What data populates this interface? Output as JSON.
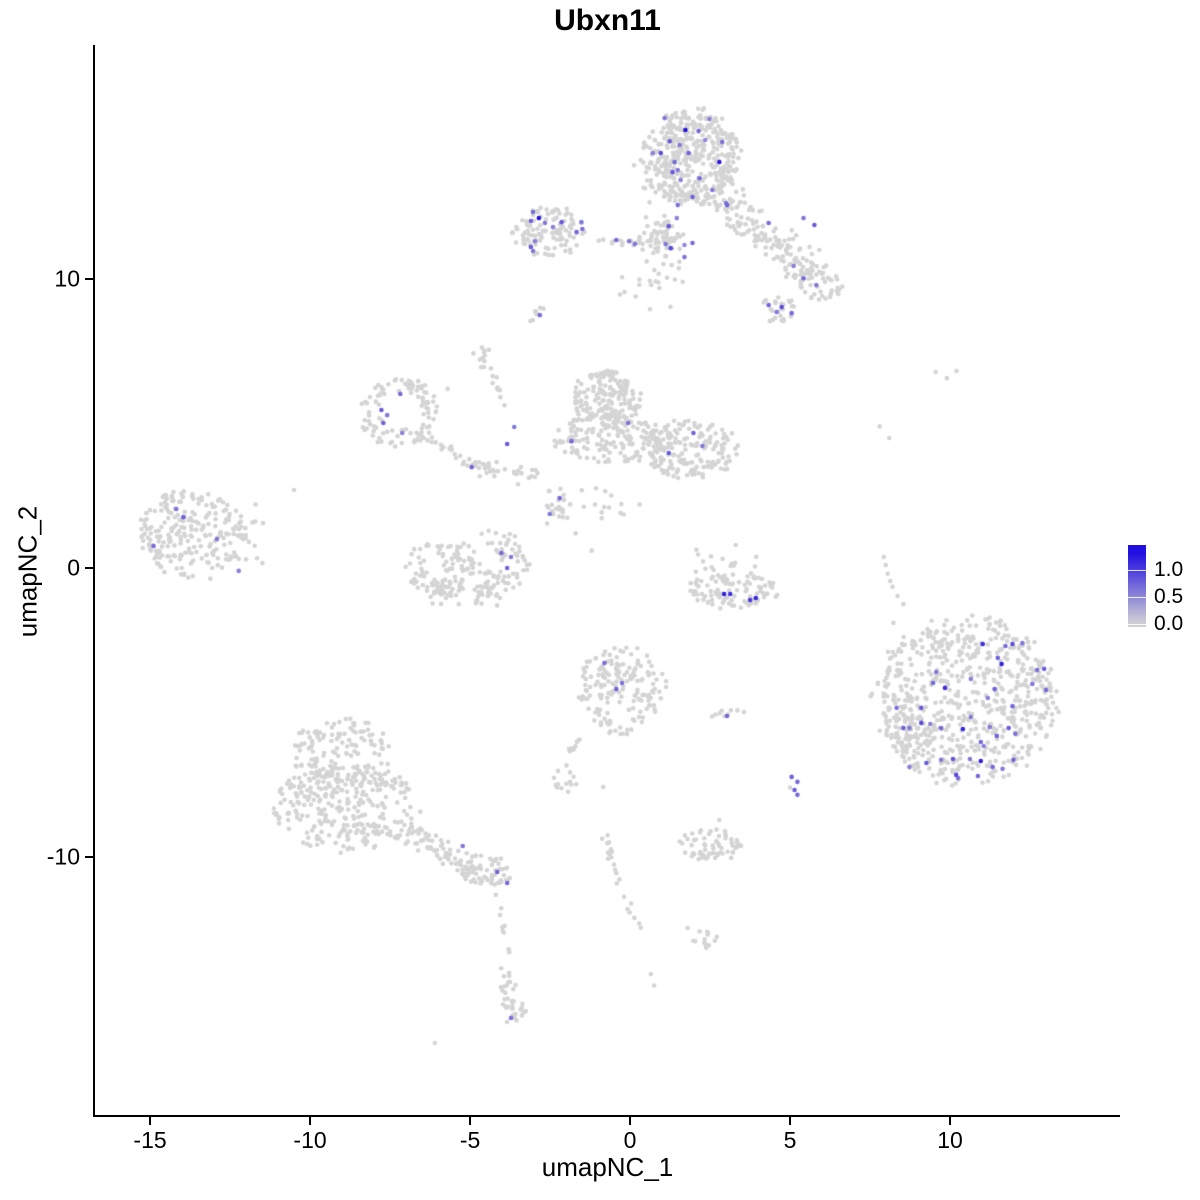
{
  "chart_data": {
    "type": "scatter",
    "title": "Ubxn11",
    "xlabel": "umapNC_1",
    "ylabel": "umapNC_2",
    "xlim": [
      -16.72,
      15.31
    ],
    "ylim": [
      -18.93,
      18.1
    ],
    "x_ticks": [
      "-15",
      "-10",
      "-5",
      "0",
      "5",
      "10"
    ],
    "x_tick_values": [
      -15,
      -10,
      -5,
      0,
      5,
      10
    ],
    "y_ticks": [
      "10",
      "0",
      "-10"
    ],
    "y_tick_values": [
      10,
      0,
      -10
    ],
    "grid": false,
    "point_radius_px": 2.3,
    "colors": {
      "low": "#d3d3d3",
      "high": "#2210e0",
      "gray_point": "#d4d4d4"
    },
    "legend": {
      "position": "right",
      "tick_labels": [
        "1.0",
        "0.5",
        "0.0"
      ],
      "tick_values": [
        1.0,
        0.5,
        0.0
      ],
      "bar_value_top": 1.46,
      "bar_value_bottom": -0.06
    },
    "gray_clusters": [
      {
        "name": "top-main",
        "dist": "disc",
        "cx": 1.9,
        "cy": 14.2,
        "rx": 1.5,
        "ry": 1.65,
        "n": 380
      },
      {
        "name": "top-fringe",
        "dist": "gauss",
        "cx": 1.9,
        "cy": 14.2,
        "rx": 1.95,
        "ry": 2.1,
        "n": 60
      },
      {
        "name": "top-neck",
        "dist": "gauss",
        "cx": 1.1,
        "cy": 11.4,
        "rx": 0.8,
        "ry": 1.05,
        "n": 60
      },
      {
        "name": "left-arm",
        "dist": "disc",
        "cx": -2.55,
        "cy": 11.6,
        "rx": 1.15,
        "ry": 0.9,
        "n": 110
      },
      {
        "name": "arm-chain",
        "dist": "line",
        "line": [
          -1.5,
          11.3,
          0.5,
          11.3
        ],
        "w": 0.18,
        "n": 16
      },
      {
        "name": "right-arm-band",
        "dist": "line",
        "line": [
          2.7,
          12.9,
          5.5,
          10.4
        ],
        "w": 0.75,
        "n": 140
      },
      {
        "name": "right-arm-blob",
        "dist": "disc",
        "cx": 5.9,
        "cy": 9.9,
        "rx": 0.8,
        "ry": 0.65,
        "n": 55
      },
      {
        "name": "right-spur-blob",
        "dist": "disc",
        "cx": 4.6,
        "cy": 8.95,
        "rx": 0.6,
        "ry": 0.55,
        "n": 28
      },
      {
        "name": "below-top-sparse",
        "dist": "gauss",
        "cx": 0.7,
        "cy": 9.9,
        "rx": 1.3,
        "ry": 1.1,
        "n": 22
      },
      {
        "name": "tiny-diagonal",
        "dist": "line",
        "line": [
          -3.1,
          8.5,
          -2.7,
          9.1
        ],
        "w": 0.12,
        "n": 8
      },
      {
        "name": "small-mid",
        "dist": "gauss",
        "cx": -4.65,
        "cy": 7.3,
        "rx": 0.35,
        "ry": 0.55,
        "n": 13
      },
      {
        "name": "small-chain",
        "dist": "line",
        "line": [
          -4.3,
          6.7,
          -3.9,
          5.5
        ],
        "w": 0.1,
        "n": 9
      },
      {
        "name": "ring-cluster",
        "dist": "ring",
        "cx": -7.2,
        "cy": 5.35,
        "rx": 1.2,
        "ry": 1.2,
        "hole": 0.45,
        "n": 105
      },
      {
        "name": "trail-a",
        "dist": "line",
        "line": [
          -6.2,
          4.5,
          -4.6,
          3.4
        ],
        "w": 0.3,
        "n": 26
      },
      {
        "name": "trail-b",
        "dist": "line",
        "line": [
          -4.6,
          3.4,
          -2.7,
          3.3
        ],
        "w": 0.3,
        "n": 26
      },
      {
        "name": "central-head",
        "dist": "disc",
        "cx": -0.75,
        "cy": 5.9,
        "rx": 1.1,
        "ry": 0.95,
        "n": 170
      },
      {
        "name": "central-body",
        "dist": "disc",
        "cx": -0.5,
        "cy": 4.45,
        "rx": 1.95,
        "ry": 0.85,
        "n": 180
      },
      {
        "name": "central-right-lobe",
        "dist": "disc",
        "cx": 1.9,
        "cy": 4.1,
        "rx": 1.55,
        "ry": 1.0,
        "n": 170
      },
      {
        "name": "below-central-blob",
        "dist": "gauss",
        "cx": -2.3,
        "cy": 2.2,
        "rx": 0.5,
        "ry": 0.75,
        "n": 24
      },
      {
        "name": "center-sparse",
        "dist": "gauss",
        "cx": -0.9,
        "cy": 2.1,
        "rx": 1.1,
        "ry": 0.8,
        "n": 12
      },
      {
        "name": "left-main",
        "dist": "disc",
        "cx": -13.7,
        "cy": 1.15,
        "rx": 1.65,
        "ry": 1.55,
        "n": 225
      },
      {
        "name": "left-fringe",
        "dist": "gauss",
        "cx": -12.1,
        "cy": 1.0,
        "rx": 0.85,
        "ry": 1.25,
        "n": 16
      },
      {
        "name": "crescent-left",
        "dist": "disc",
        "cx": -6.05,
        "cy": -0.1,
        "rx": 1.0,
        "ry": 1.05,
        "n": 75
      },
      {
        "name": "crescent-right",
        "dist": "disc",
        "cx": -4.3,
        "cy": 0.15,
        "rx": 1.15,
        "ry": 1.15,
        "n": 85
      },
      {
        "name": "crescent-bottom",
        "dist": "line",
        "line": [
          -6.3,
          -0.8,
          -4.2,
          -0.9
        ],
        "w": 0.45,
        "n": 55
      },
      {
        "name": "right-crescent",
        "dist": "disc",
        "cx": 3.2,
        "cy": -0.8,
        "rx": 1.5,
        "ry": 0.62,
        "n": 95
      },
      {
        "name": "right-crescent-v",
        "dist": "gauss",
        "cx": 3.0,
        "cy": 0.2,
        "rx": 1.35,
        "ry": 0.85,
        "n": 18
      },
      {
        "name": "bottom-center",
        "dist": "disc",
        "cx": -0.25,
        "cy": -4.2,
        "rx": 1.35,
        "ry": 1.6,
        "n": 165
      },
      {
        "name": "bc-arm",
        "dist": "line",
        "line": [
          -1.6,
          -5.8,
          -1.95,
          -6.6
        ],
        "w": 0.12,
        "n": 10
      },
      {
        "name": "tiny-pair",
        "dist": "disc",
        "cx": 3.0,
        "cy": -5.05,
        "rx": 0.55,
        "ry": 0.22,
        "n": 9
      },
      {
        "name": "small-low-blob",
        "dist": "disc",
        "cx": -2.1,
        "cy": -7.3,
        "rx": 0.5,
        "ry": 0.5,
        "n": 14
      },
      {
        "name": "right-big",
        "dist": "disc",
        "cx": 10.5,
        "cy": -4.6,
        "rx": 2.85,
        "ry": 2.9,
        "n": 680
      },
      {
        "name": "right-big-spur",
        "dist": "gauss",
        "cx": 8.6,
        "cy": -5.5,
        "rx": 0.6,
        "ry": 1.1,
        "n": 45
      },
      {
        "name": "bottom-left-top",
        "dist": "disc",
        "cx": -9.0,
        "cy": -6.5,
        "rx": 1.6,
        "ry": 1.3,
        "n": 150
      },
      {
        "name": "bottom-left-bottom",
        "dist": "disc",
        "cx": -8.9,
        "cy": -8.3,
        "rx": 2.3,
        "ry": 1.5,
        "n": 280
      },
      {
        "name": "bl-arm-band",
        "dist": "line",
        "line": [
          -7.2,
          -8.9,
          -4.9,
          -10.4
        ],
        "w": 0.5,
        "n": 70
      },
      {
        "name": "bl-arm-end",
        "dist": "disc",
        "cx": -4.55,
        "cy": -10.5,
        "rx": 0.85,
        "ry": 0.6,
        "n": 55
      },
      {
        "name": "tail-chain",
        "dist": "line",
        "line": [
          -4.2,
          -11.2,
          -3.8,
          -13.4
        ],
        "w": 0.12,
        "n": 9
      },
      {
        "name": "tail-blob-a",
        "dist": "gauss",
        "cx": -3.8,
        "cy": -14.5,
        "rx": 0.35,
        "ry": 0.75,
        "n": 18
      },
      {
        "name": "tail-blob-b",
        "dist": "disc",
        "cx": -3.6,
        "cy": -15.4,
        "rx": 0.45,
        "ry": 0.5,
        "n": 18
      },
      {
        "name": "mid-low-chain",
        "dist": "line",
        "line": [
          -0.85,
          -9.3,
          0.2,
          -12.5
        ],
        "w": 0.18,
        "n": 22
      },
      {
        "name": "br-low-blob",
        "dist": "disc",
        "cx": 2.5,
        "cy": -9.6,
        "rx": 1.0,
        "ry": 0.58,
        "n": 65
      },
      {
        "name": "trident",
        "dist": "gauss",
        "cx": 2.4,
        "cy": -12.75,
        "rx": 0.55,
        "ry": 0.45,
        "n": 13
      }
    ],
    "gray_singles_xy": [
      [
        7.8,
        4.9
      ],
      [
        8.1,
        4.5
      ],
      [
        9.55,
        6.78
      ],
      [
        9.9,
        6.57
      ],
      [
        10.2,
        6.82
      ],
      [
        8.36,
        -0.97
      ],
      [
        8.54,
        -1.25
      ],
      [
        7.93,
        0.38
      ],
      [
        7.99,
        0.1
      ],
      [
        8.05,
        -0.2
      ],
      [
        8.13,
        -0.45
      ],
      [
        8.2,
        -0.65
      ],
      [
        8.23,
        -1.9
      ],
      [
        -5.7,
        6.2
      ],
      [
        -6.1,
        -16.44
      ],
      [
        -0.84,
        -7.58
      ],
      [
        1.8,
        -12.46
      ],
      [
        2.79,
        -8.72
      ],
      [
        -10.5,
        2.7
      ],
      [
        -11.7,
        2.2
      ],
      [
        -12.0,
        0.3
      ],
      [
        -1.7,
        1.2
      ],
      [
        -1.2,
        0.6
      ],
      [
        0.65,
        -14.05
      ],
      [
        0.75,
        -14.45
      ],
      [
        5.0,
        -7.6
      ],
      [
        -3.5,
        2.9
      ],
      [
        -0.3,
        1.9
      ],
      [
        0.3,
        2.2
      ]
    ],
    "expressing_points_xyv": [
      [
        1.08,
        15.57,
        0.6
      ],
      [
        1.73,
        15.16,
        1.3
      ],
      [
        2.14,
        15.12,
        0.7
      ],
      [
        2.48,
        15.54,
        0.55
      ],
      [
        1.24,
        14.77,
        0.8
      ],
      [
        1.55,
        14.64,
        0.6
      ],
      [
        1.83,
        14.36,
        0.75
      ],
      [
        2.35,
        14.81,
        0.5
      ],
      [
        2.88,
        14.74,
        0.65
      ],
      [
        0.96,
        14.36,
        0.9
      ],
      [
        0.71,
        14.36,
        0.55
      ],
      [
        1.39,
        14.05,
        0.7
      ],
      [
        2.79,
        14.05,
        1.25
      ],
      [
        1.49,
        13.77,
        0.6
      ],
      [
        1.33,
        13.7,
        0.8
      ],
      [
        1.58,
        13.43,
        0.55
      ],
      [
        2.17,
        13.49,
        0.7
      ],
      [
        2.57,
        13.08,
        0.6
      ],
      [
        1.95,
        12.84,
        0.75
      ],
      [
        1.49,
        12.56,
        0.65
      ],
      [
        1.21,
        11.83,
        0.8
      ],
      [
        1.46,
        12.11,
        0.55
      ],
      [
        1.95,
        11.25,
        0.7
      ],
      [
        1.11,
        11.21,
        0.6
      ],
      [
        1.27,
        11.07,
        0.9
      ],
      [
        1.7,
        11.18,
        0.5
      ],
      [
        3.03,
        12.56,
        0.75
      ],
      [
        3.0,
        12.63,
        0.6
      ],
      [
        1.7,
        10.76,
        0.65
      ],
      [
        0.15,
        11.21,
        0.6
      ],
      [
        4.33,
        11.94,
        0.7
      ],
      [
        5.42,
        12.11,
        0.6
      ],
      [
        5.76,
        11.87,
        0.8
      ],
      [
        5.11,
        10.45,
        0.55
      ],
      [
        5.42,
        10.03,
        0.7
      ],
      [
        5.82,
        9.79,
        0.6
      ],
      [
        4.33,
        9.1,
        0.75
      ],
      [
        4.74,
        9.03,
        0.9
      ],
      [
        4.58,
        8.86,
        0.6
      ],
      [
        5.05,
        8.82,
        0.7
      ],
      [
        -3.03,
        12.32,
        0.7
      ],
      [
        -2.85,
        12.11,
        1.3
      ],
      [
        -2.66,
        11.94,
        0.6
      ],
      [
        -3.1,
        12.01,
        0.75
      ],
      [
        -2.41,
        11.8,
        0.55
      ],
      [
        -2.14,
        11.97,
        0.8
      ],
      [
        -1.52,
        11.97,
        0.6
      ],
      [
        -1.67,
        11.63,
        0.7
      ],
      [
        -1.49,
        11.73,
        0.65
      ],
      [
        -2.97,
        11.31,
        0.55
      ],
      [
        -3.1,
        11.11,
        0.8
      ],
      [
        -3.03,
        10.97,
        0.6
      ],
      [
        -0.43,
        11.35,
        0.7
      ],
      [
        -0.03,
        11.31,
        0.6
      ],
      [
        -2.82,
        8.75,
        0.65
      ],
      [
        -7.18,
        6.02,
        0.7
      ],
      [
        -7.77,
        5.47,
        0.8
      ],
      [
        -7.59,
        5.29,
        0.6
      ],
      [
        -7.71,
        5.02,
        0.75
      ],
      [
        -7.12,
        4.67,
        0.55
      ],
      [
        -4.95,
        3.49,
        0.7
      ],
      [
        -3.84,
        4.29,
        0.8
      ],
      [
        -3.62,
        4.88,
        0.6
      ],
      [
        -1.83,
        4.39,
        0.7
      ],
      [
        -0.06,
        5.02,
        0.65
      ],
      [
        1.98,
        4.67,
        0.75
      ],
      [
        2.26,
        4.22,
        0.6
      ],
      [
        1.21,
        3.98,
        0.8
      ],
      [
        -2.2,
        2.42,
        0.7
      ],
      [
        -2.51,
        1.87,
        0.6
      ],
      [
        -14.18,
        2.04,
        0.65
      ],
      [
        -13.96,
        1.76,
        0.75
      ],
      [
        -14.89,
        0.76,
        0.7
      ],
      [
        -12.91,
        1.0,
        0.6
      ],
      [
        -12.23,
        -0.1,
        0.55
      ],
      [
        -4.02,
        0.52,
        0.7
      ],
      [
        -3.72,
        0.38,
        0.6
      ],
      [
        -3.84,
        0.0,
        0.75
      ],
      [
        2.94,
        -0.9,
        1.2
      ],
      [
        3.13,
        -0.9,
        1.1
      ],
      [
        3.75,
        -1.11,
        1.0
      ],
      [
        3.93,
        -1.04,
        1.15
      ],
      [
        -0.8,
        -3.29,
        0.7
      ],
      [
        -0.43,
        -4.19,
        0.75
      ],
      [
        -0.25,
        -3.98,
        0.65
      ],
      [
        3.03,
        -5.12,
        0.7
      ],
      [
        5.05,
        -7.23,
        0.75
      ],
      [
        5.23,
        -7.4,
        0.7
      ],
      [
        5.14,
        -7.68,
        0.8
      ],
      [
        5.23,
        -7.85,
        0.7
      ],
      [
        -5.23,
        -9.62,
        0.6
      ],
      [
        -4.15,
        -10.52,
        0.75
      ],
      [
        -3.84,
        -10.9,
        0.7
      ],
      [
        -3.72,
        -15.57,
        0.65
      ],
      [
        11.02,
        -2.63,
        1.1
      ],
      [
        11.73,
        -2.7,
        0.7
      ],
      [
        11.95,
        -2.63,
        0.9
      ],
      [
        12.26,
        -2.6,
        0.6
      ],
      [
        11.49,
        -3.11,
        0.75
      ],
      [
        11.61,
        -3.32,
        1.2
      ],
      [
        12.72,
        -3.53,
        0.65
      ],
      [
        12.94,
        -3.49,
        0.8
      ],
      [
        9.57,
        -3.6,
        0.6
      ],
      [
        9.47,
        -3.98,
        0.7
      ],
      [
        9.84,
        -4.15,
        1.1
      ],
      [
        10.65,
        -3.84,
        0.55
      ],
      [
        11.39,
        -4.19,
        0.75
      ],
      [
        12.57,
        -4.01,
        0.6
      ],
      [
        13.0,
        -4.22,
        0.7
      ],
      [
        8.33,
        -4.84,
        0.65
      ],
      [
        9.1,
        -4.84,
        0.8
      ],
      [
        11.18,
        -4.5,
        0.55
      ],
      [
        11.95,
        -4.78,
        0.7
      ],
      [
        10.65,
        -5.16,
        0.6
      ],
      [
        8.54,
        -5.54,
        0.75
      ],
      [
        8.73,
        -5.54,
        0.6
      ],
      [
        9.1,
        -5.36,
        0.9
      ],
      [
        9.38,
        -5.4,
        0.55
      ],
      [
        9.72,
        -5.54,
        0.7
      ],
      [
        10.4,
        -5.57,
        1.15
      ],
      [
        11.24,
        -5.5,
        0.6
      ],
      [
        11.83,
        -5.54,
        0.8
      ],
      [
        12.04,
        -5.74,
        0.65
      ],
      [
        10.96,
        -6.02,
        0.7
      ],
      [
        11.05,
        -6.16,
        0.55
      ],
      [
        11.46,
        -5.81,
        0.75
      ],
      [
        9.72,
        -6.64,
        0.6
      ],
      [
        10.09,
        -6.61,
        0.85
      ],
      [
        10.62,
        -6.61,
        0.6
      ],
      [
        10.96,
        -6.68,
        1.2
      ],
      [
        11.33,
        -6.89,
        0.7
      ],
      [
        11.64,
        -6.95,
        0.6
      ],
      [
        11.98,
        -6.64,
        0.75
      ],
      [
        10.19,
        -7.16,
        0.9
      ],
      [
        10.25,
        -7.27,
        0.65
      ],
      [
        10.87,
        -7.2,
        0.7
      ],
      [
        8.73,
        -6.89,
        0.55
      ],
      [
        9.26,
        -6.75,
        0.8
      ]
    ]
  }
}
